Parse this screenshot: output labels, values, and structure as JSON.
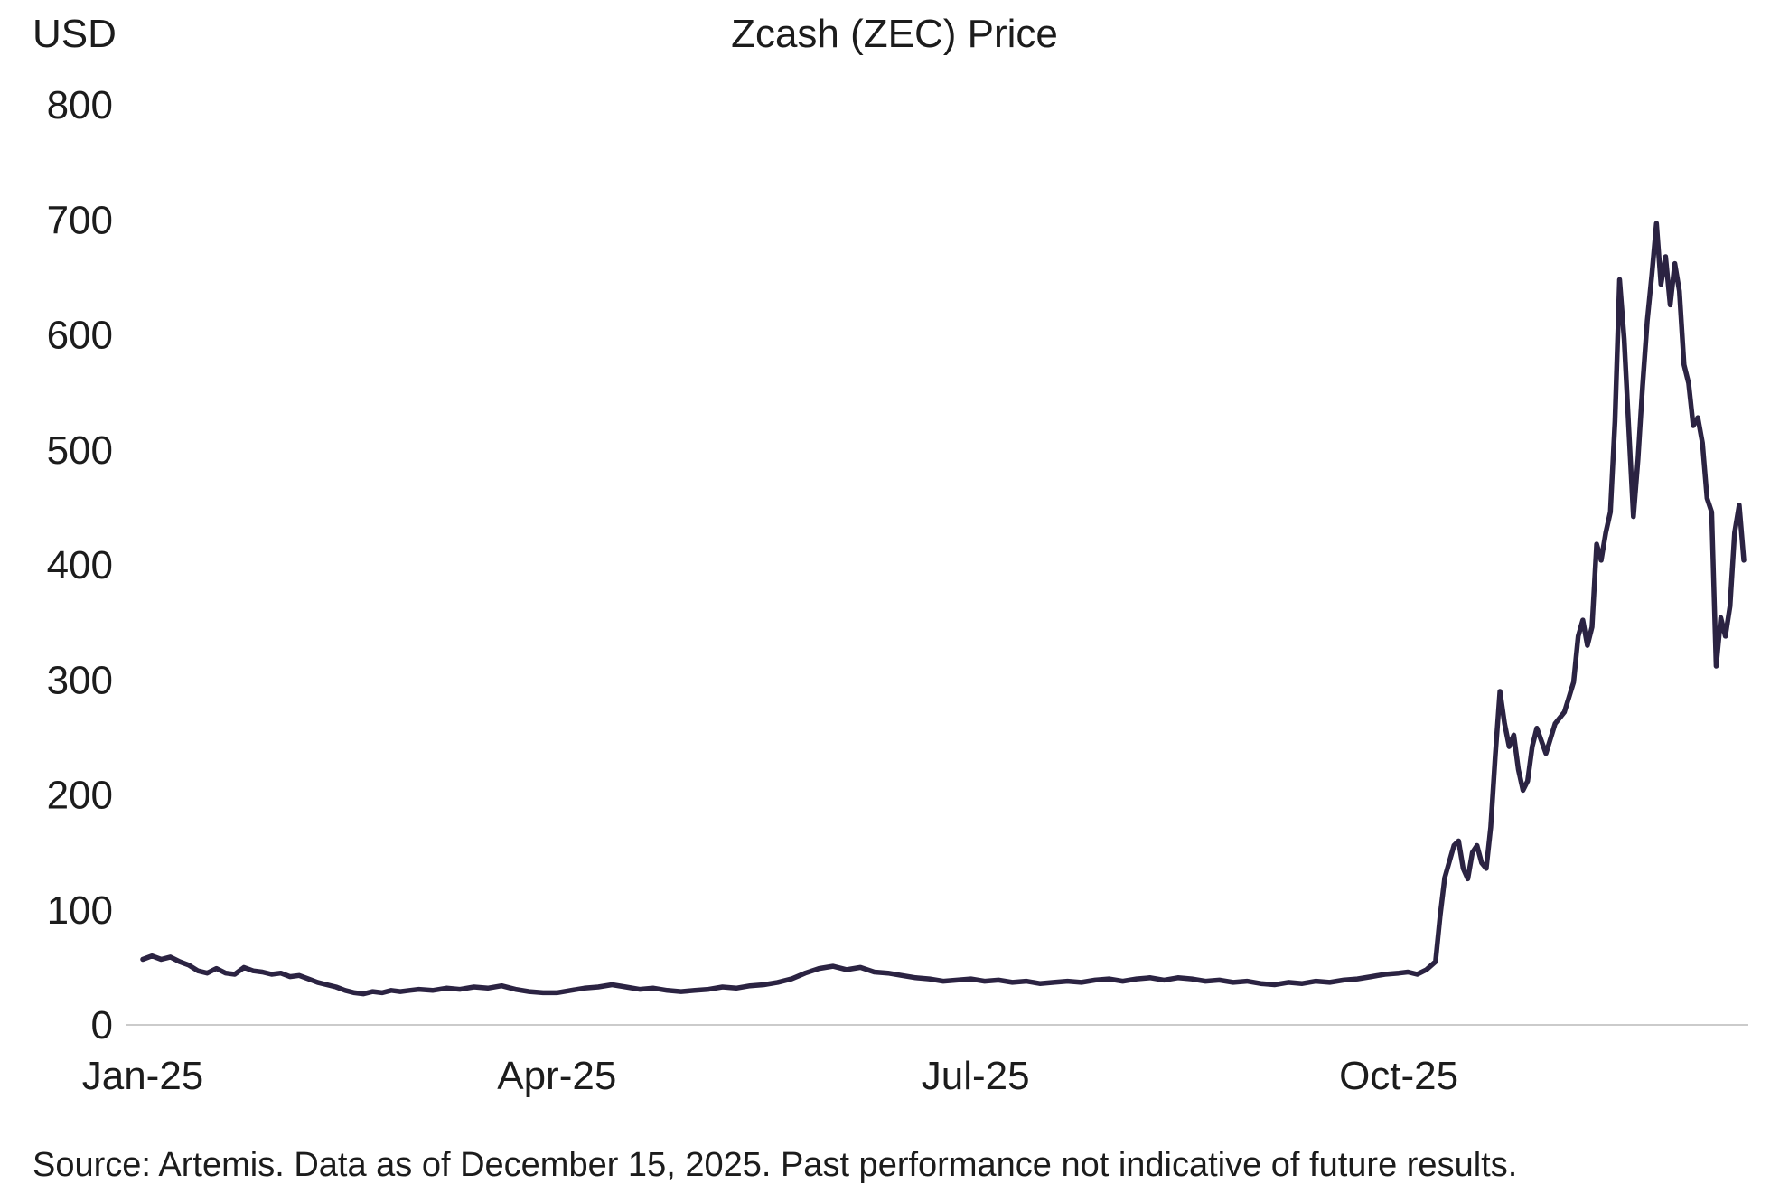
{
  "chart_data": {
    "type": "line",
    "title": "Zcash (ZEC) Price",
    "ylabel": "USD",
    "xlabel": "",
    "x_tick_labels": [
      "Jan-25",
      "Apr-25",
      "Jul-25",
      "Oct-25"
    ],
    "x_tick_days": [
      0,
      90,
      181,
      273
    ],
    "y_ticks": [
      0,
      100,
      200,
      300,
      400,
      500,
      600,
      700,
      800
    ],
    "ylim": [
      0,
      800
    ],
    "x_domain_days": [
      0,
      348
    ],
    "grid": "off",
    "legend": "none",
    "line_color": "#2b2342",
    "axis_color": "#cbcbcb",
    "text_color": "#1c1c1c",
    "series": [
      {
        "name": "Zcash (ZEC) price in USD, Jan 1 2025 (day 0) to Dec 15 2025 (day 348)",
        "points": [
          [
            0,
            57
          ],
          [
            2,
            60
          ],
          [
            4,
            57
          ],
          [
            6,
            59
          ],
          [
            8,
            55
          ],
          [
            10,
            52
          ],
          [
            12,
            47
          ],
          [
            14,
            45
          ],
          [
            16,
            49
          ],
          [
            18,
            45
          ],
          [
            20,
            44
          ],
          [
            22,
            50
          ],
          [
            24,
            47
          ],
          [
            26,
            46
          ],
          [
            28,
            44
          ],
          [
            30,
            45
          ],
          [
            32,
            42
          ],
          [
            34,
            43
          ],
          [
            36,
            40
          ],
          [
            38,
            37
          ],
          [
            40,
            35
          ],
          [
            42,
            33
          ],
          [
            44,
            30
          ],
          [
            46,
            28
          ],
          [
            48,
            27
          ],
          [
            50,
            29
          ],
          [
            52,
            28
          ],
          [
            54,
            30
          ],
          [
            56,
            29
          ],
          [
            58,
            30
          ],
          [
            60,
            31
          ],
          [
            63,
            30
          ],
          [
            66,
            32
          ],
          [
            69,
            31
          ],
          [
            72,
            33
          ],
          [
            75,
            32
          ],
          [
            78,
            34
          ],
          [
            81,
            31
          ],
          [
            84,
            29
          ],
          [
            87,
            28
          ],
          [
            90,
            28
          ],
          [
            93,
            30
          ],
          [
            96,
            32
          ],
          [
            99,
            33
          ],
          [
            102,
            35
          ],
          [
            105,
            33
          ],
          [
            108,
            31
          ],
          [
            111,
            32
          ],
          [
            114,
            30
          ],
          [
            117,
            29
          ],
          [
            120,
            30
          ],
          [
            123,
            31
          ],
          [
            126,
            33
          ],
          [
            129,
            32
          ],
          [
            132,
            34
          ],
          [
            135,
            35
          ],
          [
            138,
            37
          ],
          [
            141,
            40
          ],
          [
            144,
            45
          ],
          [
            147,
            49
          ],
          [
            150,
            51
          ],
          [
            153,
            48
          ],
          [
            156,
            50
          ],
          [
            159,
            46
          ],
          [
            162,
            45
          ],
          [
            165,
            43
          ],
          [
            168,
            41
          ],
          [
            171,
            40
          ],
          [
            174,
            38
          ],
          [
            177,
            39
          ],
          [
            180,
            40
          ],
          [
            183,
            38
          ],
          [
            186,
            39
          ],
          [
            189,
            37
          ],
          [
            192,
            38
          ],
          [
            195,
            36
          ],
          [
            198,
            37
          ],
          [
            201,
            38
          ],
          [
            204,
            37
          ],
          [
            207,
            39
          ],
          [
            210,
            40
          ],
          [
            213,
            38
          ],
          [
            216,
            40
          ],
          [
            219,
            41
          ],
          [
            222,
            39
          ],
          [
            225,
            41
          ],
          [
            228,
            40
          ],
          [
            231,
            38
          ],
          [
            234,
            39
          ],
          [
            237,
            37
          ],
          [
            240,
            38
          ],
          [
            243,
            36
          ],
          [
            246,
            35
          ],
          [
            249,
            37
          ],
          [
            252,
            36
          ],
          [
            255,
            38
          ],
          [
            258,
            37
          ],
          [
            261,
            39
          ],
          [
            264,
            40
          ],
          [
            267,
            42
          ],
          [
            270,
            44
          ],
          [
            273,
            45
          ],
          [
            275,
            46
          ],
          [
            277,
            44
          ],
          [
            279,
            48
          ],
          [
            281,
            55
          ],
          [
            282,
            95
          ],
          [
            283,
            128
          ],
          [
            284,
            142
          ],
          [
            285,
            156
          ],
          [
            286,
            160
          ],
          [
            287,
            136
          ],
          [
            288,
            127
          ],
          [
            289,
            150
          ],
          [
            290,
            156
          ],
          [
            291,
            141
          ],
          [
            292,
            136
          ],
          [
            293,
            172
          ],
          [
            294,
            235
          ],
          [
            295,
            290
          ],
          [
            296,
            262
          ],
          [
            297,
            242
          ],
          [
            298,
            252
          ],
          [
            299,
            222
          ],
          [
            300,
            204
          ],
          [
            301,
            212
          ],
          [
            302,
            242
          ],
          [
            303,
            258
          ],
          [
            305,
            236
          ],
          [
            307,
            262
          ],
          [
            309,
            272
          ],
          [
            311,
            298
          ],
          [
            312,
            338
          ],
          [
            313,
            352
          ],
          [
            314,
            330
          ],
          [
            315,
            346
          ],
          [
            316,
            418
          ],
          [
            317,
            404
          ],
          [
            318,
            428
          ],
          [
            319,
            446
          ],
          [
            320,
            525
          ],
          [
            321,
            648
          ],
          [
            322,
            596
          ],
          [
            323,
            518
          ],
          [
            324,
            442
          ],
          [
            325,
            492
          ],
          [
            326,
            556
          ],
          [
            327,
            612
          ],
          [
            328,
            652
          ],
          [
            329,
            697
          ],
          [
            330,
            644
          ],
          [
            331,
            668
          ],
          [
            332,
            626
          ],
          [
            333,
            662
          ],
          [
            334,
            638
          ],
          [
            335,
            574
          ],
          [
            336,
            558
          ],
          [
            337,
            521
          ],
          [
            338,
            528
          ],
          [
            339,
            506
          ],
          [
            340,
            458
          ],
          [
            341,
            446
          ],
          [
            342,
            312
          ],
          [
            343,
            354
          ],
          [
            344,
            338
          ],
          [
            345,
            364
          ],
          [
            346,
            428
          ],
          [
            347,
            452
          ],
          [
            348,
            404
          ]
        ]
      }
    ]
  },
  "footer": {
    "source": "Source: Artemis. Data as of December 15, 2025. Past performance not indicative of future results."
  }
}
